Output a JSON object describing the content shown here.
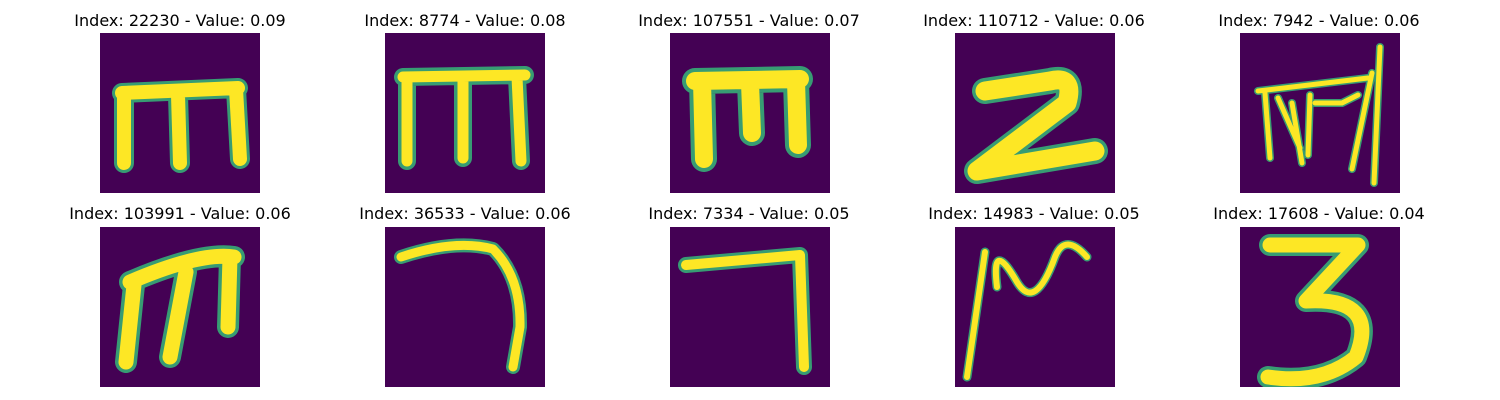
{
  "figure": {
    "colors": {
      "background": "#440154",
      "stroke": "#fde725",
      "edge": "#35b779"
    },
    "panels": [
      {
        "title": "Index: 22230 - Value: 0.09",
        "glyph": "handwritten-m"
      },
      {
        "title": "Index: 8774 - Value: 0.08",
        "glyph": "handwritten-m"
      },
      {
        "title": "Index: 107551 - Value: 0.07",
        "glyph": "handwritten-m"
      },
      {
        "title": "Index: 110712 - Value: 0.06",
        "glyph": "handwritten-2"
      },
      {
        "title": "Index: 7942 - Value: 0.06",
        "glyph": "scribbled-m"
      },
      {
        "title": "Index: 103991 - Value: 0.06",
        "glyph": "handwritten-m"
      },
      {
        "title": "Index: 36533 - Value: 0.06",
        "glyph": "handwritten-7"
      },
      {
        "title": "Index: 7334 - Value: 0.05",
        "glyph": "handwritten-7"
      },
      {
        "title": "Index: 14983 - Value: 0.05",
        "glyph": "handwritten-n"
      },
      {
        "title": "Index: 17608 - Value: 0.04",
        "glyph": "handwritten-3"
      }
    ]
  }
}
